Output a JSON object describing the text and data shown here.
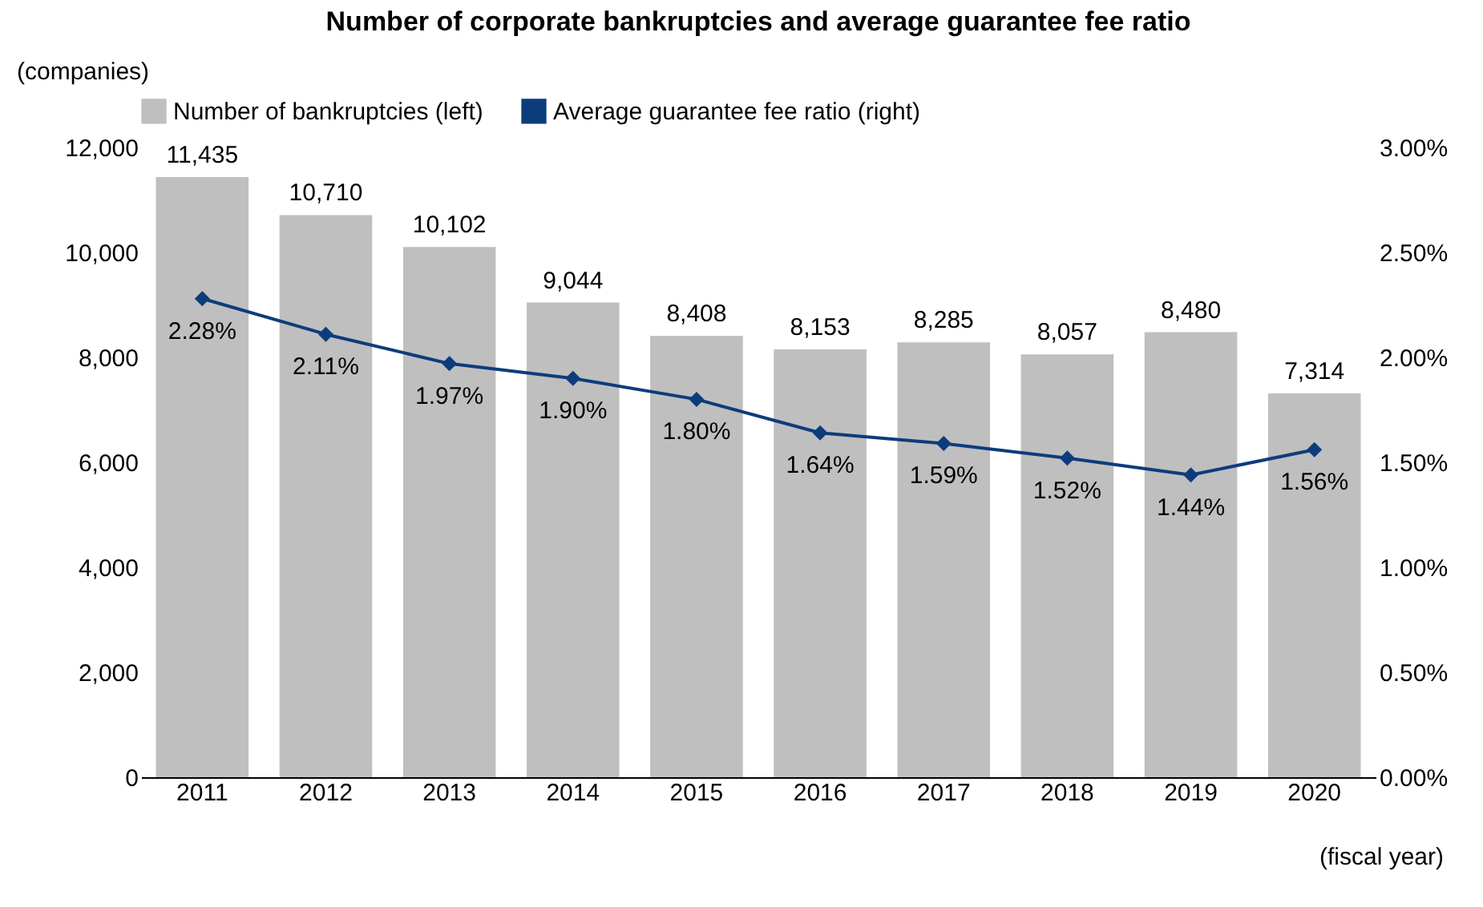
{
  "chart_data": {
    "type": "bar",
    "title": "Number of corporate bankruptcies and average guarantee fee ratio",
    "ylabel": "(companies)",
    "xlabel": "(fiscal year)",
    "categories": [
      "2011",
      "2012",
      "2013",
      "2014",
      "2015",
      "2016",
      "2017",
      "2018",
      "2019",
      "2020"
    ],
    "series": [
      {
        "name": "Number of bankruptcies (left)",
        "color": "#bfbfbf",
        "values": [
          11435,
          10710,
          10102,
          9044,
          8408,
          8153,
          8285,
          8057,
          8480,
          7314
        ],
        "value_labels": [
          "11,435",
          "10,710",
          "10,102",
          "9,044",
          "8,408",
          "8,153",
          "8,285",
          "8,057",
          "8,480",
          "7,314"
        ]
      },
      {
        "name": "Average guarantee fee ratio (right)",
        "type": "line",
        "axis": "y2",
        "color": "#0d3c7c",
        "marker": "diamond",
        "values": [
          2.28,
          2.11,
          1.97,
          1.9,
          1.8,
          1.64,
          1.59,
          1.52,
          1.44,
          1.56
        ],
        "value_labels": [
          "2.28%",
          "2.11%",
          "1.97%",
          "1.90%",
          "1.80%",
          "1.64%",
          "1.59%",
          "1.52%",
          "1.44%",
          "1.56%"
        ]
      }
    ],
    "ylim": [
      0,
      12000
    ],
    "yticks": [
      {
        "value": 0,
        "label": "0"
      },
      {
        "value": 2000,
        "label": "2,000"
      },
      {
        "value": 4000,
        "label": "4,000"
      },
      {
        "value": 6000,
        "label": "6,000"
      },
      {
        "value": 8000,
        "label": "8,000"
      },
      {
        "value": 10000,
        "label": "10,000"
      },
      {
        "value": 12000,
        "label": "12,000"
      }
    ],
    "y2lim": [
      0,
      3
    ],
    "y2ticks": [
      {
        "value": 0,
        "label": "0.00%"
      },
      {
        "value": 0.5,
        "label": "0.50%"
      },
      {
        "value": 1,
        "label": "1.00%"
      },
      {
        "value": 1.5,
        "label": "1.50%"
      },
      {
        "value": 2,
        "label": "2.00%"
      },
      {
        "value": 2.5,
        "label": "2.50%"
      },
      {
        "value": 3,
        "label": "3.00%"
      }
    ],
    "legend": "top",
    "grid": false
  }
}
